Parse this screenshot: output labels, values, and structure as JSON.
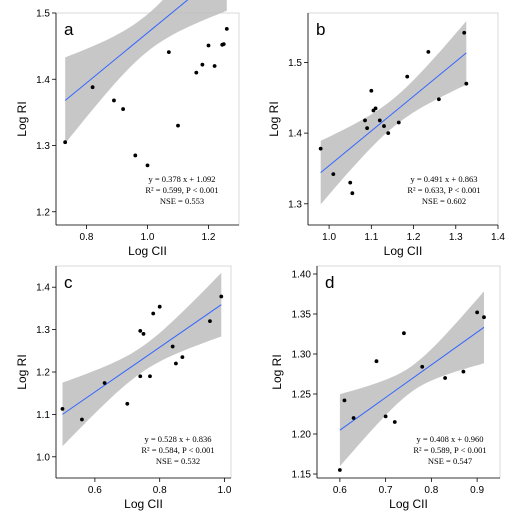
{
  "chart_data": [
    {
      "type": "scatter",
      "letter": "a",
      "xlabel": "Log CII",
      "ylabel": "Log RI",
      "xlim": [
        0.7,
        1.3
      ],
      "ylim": [
        1.18,
        1.5
      ],
      "xticks": [
        0.8,
        1.0,
        1.2
      ],
      "yticks": [
        1.2,
        1.3,
        1.4,
        1.5
      ],
      "xtick_labels": [
        "0.8",
        "1.0",
        "1.2"
      ],
      "ytick_labels": [
        "1.2",
        "1.3",
        "1.4",
        "1.5"
      ],
      "points": [
        {
          "x": 0.73,
          "y": 1.305
        },
        {
          "x": 0.82,
          "y": 1.388
        },
        {
          "x": 0.89,
          "y": 1.368
        },
        {
          "x": 0.92,
          "y": 1.355
        },
        {
          "x": 0.96,
          "y": 1.285
        },
        {
          "x": 1.0,
          "y": 1.27
        },
        {
          "x": 1.07,
          "y": 1.441
        },
        {
          "x": 1.1,
          "y": 1.33
        },
        {
          "x": 1.16,
          "y": 1.41
        },
        {
          "x": 1.18,
          "y": 1.422
        },
        {
          "x": 1.2,
          "y": 1.451
        },
        {
          "x": 1.22,
          "y": 1.42
        },
        {
          "x": 1.245,
          "y": 1.452
        },
        {
          "x": 1.25,
          "y": 1.453
        },
        {
          "x": 1.26,
          "y": 1.476
        }
      ],
      "fit": {
        "slope": 0.378,
        "intercept": 1.092,
        "x_range": [
          0.73,
          1.26
        ],
        "band_halfwidth_ends": 0.065,
        "band_halfwidth_mid": 0.028
      },
      "eq_lines": [
        "y = 0.378 x + 1.092",
        "R² = 0.599, P < 0.001",
        "NSE = 0.553"
      ]
    },
    {
      "type": "scatter",
      "letter": "b",
      "xlabel": "Log CII",
      "ylabel": "Log RI",
      "xlim": [
        0.95,
        1.4
      ],
      "ylim": [
        1.27,
        1.57
      ],
      "xticks": [
        1.0,
        1.1,
        1.2,
        1.3,
        1.4
      ],
      "yticks": [
        1.3,
        1.4,
        1.5
      ],
      "xtick_labels": [
        "1.0",
        "1.1",
        "1.2",
        "1.3",
        "1.4"
      ],
      "ytick_labels": [
        "1.3",
        "1.4",
        "1.5"
      ],
      "points": [
        {
          "x": 0.98,
          "y": 1.378
        },
        {
          "x": 1.01,
          "y": 1.342
        },
        {
          "x": 1.05,
          "y": 1.33
        },
        {
          "x": 1.055,
          "y": 1.315
        },
        {
          "x": 1.085,
          "y": 1.418
        },
        {
          "x": 1.09,
          "y": 1.407
        },
        {
          "x": 1.1,
          "y": 1.46
        },
        {
          "x": 1.105,
          "y": 1.432
        },
        {
          "x": 1.11,
          "y": 1.435
        },
        {
          "x": 1.12,
          "y": 1.418
        },
        {
          "x": 1.13,
          "y": 1.41
        },
        {
          "x": 1.14,
          "y": 1.4
        },
        {
          "x": 1.165,
          "y": 1.415
        },
        {
          "x": 1.185,
          "y": 1.48
        },
        {
          "x": 1.235,
          "y": 1.515
        },
        {
          "x": 1.26,
          "y": 1.448
        },
        {
          "x": 1.32,
          "y": 1.542
        },
        {
          "x": 1.325,
          "y": 1.47
        }
      ],
      "fit": {
        "slope": 0.491,
        "intercept": 0.863,
        "x_range": [
          0.98,
          1.325
        ],
        "band_halfwidth_ends": 0.045,
        "band_halfwidth_mid": 0.02
      },
      "eq_lines": [
        "y = 0.491 x + 0.863",
        "R² = 0.633, P < 0.001",
        "NSE = 0.602"
      ]
    },
    {
      "type": "scatter",
      "letter": "c",
      "xlabel": "Log CII",
      "ylabel": "Log RI",
      "xlim": [
        0.48,
        1.02
      ],
      "ylim": [
        0.95,
        1.45
      ],
      "xticks": [
        0.6,
        0.8,
        1.0
      ],
      "yticks": [
        1.0,
        1.1,
        1.2,
        1.3,
        1.4
      ],
      "xtick_labels": [
        "0.6",
        "0.8",
        "1.0"
      ],
      "ytick_labels": [
        "1.0",
        "1.1",
        "1.2",
        "1.3",
        "1.4"
      ],
      "points": [
        {
          "x": 0.5,
          "y": 1.113
        },
        {
          "x": 0.56,
          "y": 1.088
        },
        {
          "x": 0.63,
          "y": 1.174
        },
        {
          "x": 0.7,
          "y": 1.125
        },
        {
          "x": 0.74,
          "y": 1.19
        },
        {
          "x": 0.74,
          "y": 1.297
        },
        {
          "x": 0.75,
          "y": 1.29
        },
        {
          "x": 0.77,
          "y": 1.19
        },
        {
          "x": 0.78,
          "y": 1.338
        },
        {
          "x": 0.8,
          "y": 1.354
        },
        {
          "x": 0.84,
          "y": 1.26
        },
        {
          "x": 0.85,
          "y": 1.22
        },
        {
          "x": 0.87,
          "y": 1.235
        },
        {
          "x": 0.955,
          "y": 1.32
        },
        {
          "x": 0.99,
          "y": 1.378
        }
      ],
      "fit": {
        "slope": 0.528,
        "intercept": 0.836,
        "x_range": [
          0.5,
          0.99
        ],
        "band_halfwidth_ends": 0.075,
        "band_halfwidth_mid": 0.03
      },
      "eq_lines": [
        "y = 0.528 x + 0.836",
        "R² = 0.584, P < 0.001",
        "NSE = 0.532"
      ]
    },
    {
      "type": "scatter",
      "letter": "d",
      "xlabel": "Log CII",
      "ylabel": "Log RI",
      "xlim": [
        0.55,
        0.95
      ],
      "ylim": [
        1.145,
        1.41
      ],
      "xticks": [
        0.6,
        0.7,
        0.8,
        0.9
      ],
      "yticks": [
        1.15,
        1.2,
        1.25,
        1.3,
        1.35,
        1.4
      ],
      "xtick_labels": [
        "0.6",
        "0.7",
        "0.8",
        "0.9"
      ],
      "ytick_labels": [
        "1.15",
        "1.20",
        "1.25",
        "1.30",
        "1.35",
        "1.40"
      ],
      "points": [
        {
          "x": 0.6,
          "y": 1.155
        },
        {
          "x": 0.61,
          "y": 1.242
        },
        {
          "x": 0.63,
          "y": 1.22
        },
        {
          "x": 0.68,
          "y": 1.291
        },
        {
          "x": 0.7,
          "y": 1.222
        },
        {
          "x": 0.72,
          "y": 1.215
        },
        {
          "x": 0.74,
          "y": 1.326
        },
        {
          "x": 0.78,
          "y": 1.284
        },
        {
          "x": 0.83,
          "y": 1.27
        },
        {
          "x": 0.87,
          "y": 1.278
        },
        {
          "x": 0.9,
          "y": 1.352
        },
        {
          "x": 0.915,
          "y": 1.346
        }
      ],
      "fit": {
        "slope": 0.408,
        "intercept": 0.96,
        "x_range": [
          0.6,
          0.915
        ],
        "band_halfwidth_ends": 0.045,
        "band_halfwidth_mid": 0.016
      },
      "eq_lines": [
        "y = 0.408 x + 0.960",
        "R² = 0.589, P < 0.001",
        "NSE = 0.547"
      ]
    }
  ],
  "colors": {
    "fit_line": "#3366ff",
    "band": "#bdbdbd",
    "points": "#000000"
  }
}
